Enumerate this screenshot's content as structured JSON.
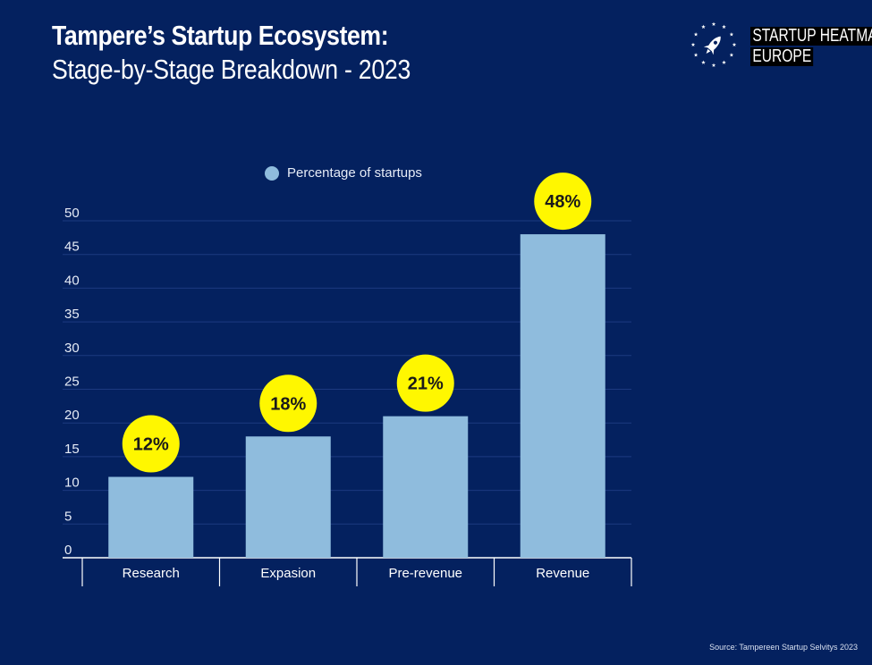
{
  "header": {
    "title": "Tampere’s Startup Ecosystem:",
    "subtitle": "Stage-by-Stage Breakdown - 2023"
  },
  "logo": {
    "line1": "STARTUP HEATMAP",
    "line2": "EUROPE",
    "icon": "rocket-icon"
  },
  "footer": {
    "source": "Source: Tampereen Startup Selvitys 2023"
  },
  "colors": {
    "background": "#04215f",
    "bar": "#8fbcdd",
    "label_bubble": "#fff700",
    "label_text": "#1a1a1a",
    "grid": "#1c3a80"
  },
  "chart_data": {
    "type": "bar",
    "categories": [
      "Research",
      "Expasion",
      "Pre-revenue",
      "Revenue"
    ],
    "series": [
      {
        "name": "Percentage of startups",
        "values": [
          12,
          18,
          21,
          48
        ]
      }
    ],
    "data_labels": [
      "12%",
      "18%",
      "21%",
      "48%"
    ],
    "yticks": [
      0,
      5,
      10,
      15,
      20,
      25,
      30,
      35,
      40,
      45,
      50
    ],
    "ylim": [
      0,
      50
    ],
    "grid": true,
    "legend": "top-center"
  }
}
